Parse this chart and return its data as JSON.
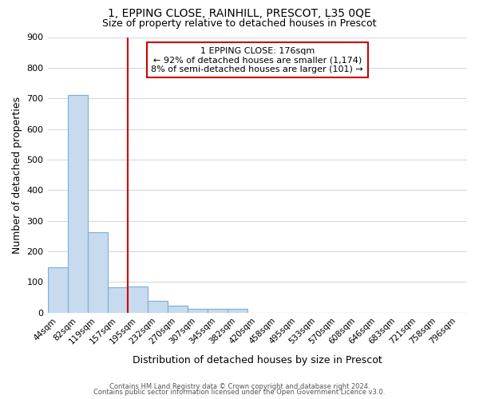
{
  "title1": "1, EPPING CLOSE, RAINHILL, PRESCOT, L35 0QE",
  "title2": "Size of property relative to detached houses in Prescot",
  "xlabel": "Distribution of detached houses by size in Prescot",
  "ylabel": "Number of detached properties",
  "bar_labels": [
    "44sqm",
    "82sqm",
    "119sqm",
    "157sqm",
    "195sqm",
    "232sqm",
    "270sqm",
    "307sqm",
    "345sqm",
    "382sqm",
    "420sqm",
    "458sqm",
    "495sqm",
    "533sqm",
    "570sqm",
    "608sqm",
    "646sqm",
    "683sqm",
    "721sqm",
    "758sqm",
    "796sqm"
  ],
  "bar_values": [
    148,
    710,
    262,
    83,
    85,
    37,
    22,
    11,
    11,
    11,
    0,
    0,
    0,
    0,
    0,
    0,
    0,
    0,
    0,
    0,
    0
  ],
  "bar_color": "#c8daee",
  "bar_edge_color": "#7bafd4",
  "vline_color": "#cc0000",
  "annotation_line1": "1 EPPING CLOSE: 176sqm",
  "annotation_line2": "← 92% of detached houses are smaller (1,174)",
  "annotation_line3": "8% of semi-detached houses are larger (101) →",
  "annotation_box_color": "#ffffff",
  "annotation_box_edge_color": "#cc0000",
  "footer1": "Contains HM Land Registry data © Crown copyright and database right 2024.",
  "footer2": "Contains public sector information licensed under the Open Government Licence v3.0.",
  "ylim": [
    0,
    900
  ],
  "yticks": [
    0,
    100,
    200,
    300,
    400,
    500,
    600,
    700,
    800,
    900
  ],
  "background_color": "#ffffff",
  "grid_color": "#d0dae8"
}
